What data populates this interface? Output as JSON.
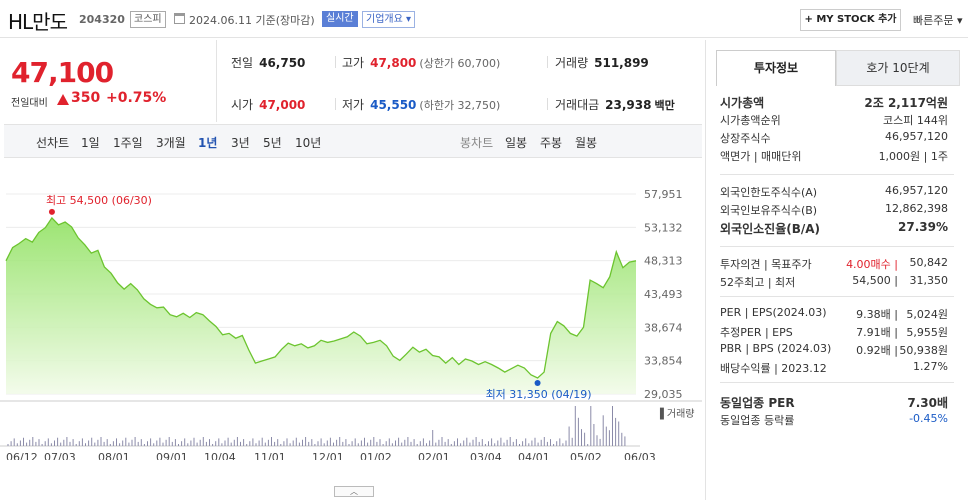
{
  "header": {
    "name": "HL만도",
    "code": "204320",
    "market": "코스피",
    "date": "2024.06.11",
    "basis": "기준(장마감)",
    "realtime": "실시간",
    "corp_info": "기업개요",
    "mystock": "+ MY STOCK 추가",
    "quick_order": "빠른주문"
  },
  "price": {
    "current": "47,100",
    "change_label": "전일대비",
    "change": "350",
    "change_pct": "+0.75%"
  },
  "metrics": {
    "prev_label": "전일",
    "prev": "46,750",
    "high_label": "고가",
    "high": "47,800",
    "upper_limit": "(상한가 60,700)",
    "volume_label": "거래량",
    "volume": "511,899",
    "open_label": "시가",
    "open": "47,000",
    "low_label": "저가",
    "low": "45,550",
    "lower_limit": "(하한가 32,750)",
    "amount_label": "거래대금",
    "amount": "23,938",
    "amount_unit": "백만"
  },
  "period_bar": {
    "line_chart": "선차트",
    "periods": [
      "1일",
      "1주일",
      "3개월",
      "1년",
      "3년",
      "5년",
      "10년"
    ],
    "selected": "1년",
    "candle_chart": "봉차트",
    "candles": [
      "일봉",
      "주봉",
      "월봉"
    ]
  },
  "chart_data": {
    "type": "area",
    "y_ticks": [
      "57,951",
      "53,132",
      "48,313",
      "43,493",
      "38,674",
      "33,854",
      "29,035"
    ],
    "ylim": [
      29035,
      57951
    ],
    "x_ticks": [
      "06/12",
      "07/03",
      "08/01",
      "09/01",
      "10/04",
      "11/01",
      "12/01",
      "01/02",
      "02/01",
      "03/04",
      "04/01",
      "05/02",
      "06/03"
    ],
    "max_label": "최고 54,500 (06/30)",
    "min_label": "최저 31,350 (04/19)",
    "volume_label": "거래량",
    "series": [
      {
        "values": [
          48300,
          50200,
          50800,
          51500,
          51000,
          52400,
          53100,
          54500,
          53500,
          53900,
          53200,
          51600,
          50600,
          49400,
          49800,
          47400,
          46500,
          45100,
          44200,
          45000,
          44100,
          42800,
          42000,
          41500,
          41600,
          40500,
          40200,
          40700,
          40100,
          40800,
          40500,
          39600,
          38800,
          37600,
          37800,
          37100,
          37500,
          35400,
          33500,
          33800,
          34100,
          34400,
          35500,
          36400,
          36000,
          36300,
          35700,
          36000,
          36800,
          36500,
          36700,
          37000,
          37300,
          38000,
          37400,
          36300,
          36500,
          36800,
          36000,
          34500,
          33900,
          34800,
          35800,
          35100,
          35500,
          34600,
          34400,
          33500,
          34300,
          33300,
          34100,
          33800,
          33300,
          33700,
          33300,
          32800,
          32200,
          32700,
          33200,
          32800,
          31800,
          31350,
          32200,
          37800,
          39500,
          38900,
          37800,
          37400,
          38700,
          45500,
          45000,
          44400,
          46000,
          49600,
          47300,
          48100,
          48300
        ]
      }
    ],
    "volume_colors": {
      "line": "#6cc42f",
      "fill": "#dff5cc",
      "volume": "#8a8aa8"
    }
  },
  "right_panel": {
    "tabs": [
      "투자정보",
      "호가 10단계"
    ],
    "rows": [
      {
        "l": "시가총액",
        "r": "2조 2,117억원",
        "bold": true
      },
      {
        "l": "시가총액순위",
        "r": "코스피 144위"
      },
      {
        "l": "상장주식수",
        "r": "46,957,120"
      },
      {
        "l": "액면가 | 매매단위",
        "r": "1,000원 | 1주"
      },
      {
        "l": "외국인한도주식수(A)",
        "r": "46,957,120"
      },
      {
        "l": "외국인보유주식수(B)",
        "r": "12,862,398"
      },
      {
        "l": "외국인소진율(B/A)",
        "r": "27.39%",
        "bold": true
      },
      {
        "l": "투자의견 | 목표주가",
        "mid": "4.00매수",
        "r": "50,842"
      },
      {
        "l": "52주최고 | 최저",
        "mid": "54,500",
        "r": "31,350"
      },
      {
        "l": "PER | EPS(2024.03)",
        "mid": "9.38배",
        "r": "5,024원"
      },
      {
        "l": "추정PER | EPS",
        "mid": "7.91배",
        "r": "5,955원"
      },
      {
        "l": "PBR | BPS (2024.03)",
        "mid": "0.92배",
        "r": "50,938원"
      },
      {
        "l": "배당수익률 | 2023.12",
        "r": "1.27%"
      },
      {
        "l": "동일업종 PER",
        "r": "7.30배",
        "bold": true
      },
      {
        "l": "동일업종 등락률",
        "r": "-0.45%"
      }
    ]
  }
}
